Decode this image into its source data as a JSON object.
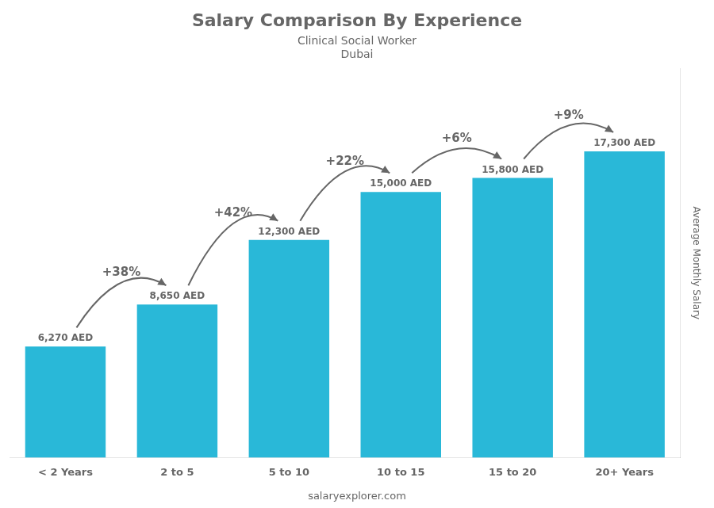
{
  "chart_data": {
    "type": "bar",
    "title": "Salary Comparison By Experience",
    "subtitle": [
      "Clinical Social Worker",
      "Dubai"
    ],
    "categories": [
      "< 2 Years",
      "2 to 5",
      "5 to 10",
      "10 to 15",
      "15 to 20",
      "20+ Years"
    ],
    "values": [
      6270,
      8650,
      12300,
      15000,
      15800,
      17300
    ],
    "value_labels": [
      "6,270 AED",
      "8,650 AED",
      "12,300 AED",
      "15,000 AED",
      "15,800 AED",
      "17,300 AED"
    ],
    "data_labels": true,
    "color": "#29b8d8",
    "y_label": "Average Monthly Salary",
    "ylim": [
      0,
      22000
    ],
    "tick_labels": "x",
    "grid": false,
    "annotations": [
      "+38%",
      "+42%",
      "+22%",
      "+6%",
      "+9%"
    ],
    "footer": "salaryexplorer.com"
  }
}
